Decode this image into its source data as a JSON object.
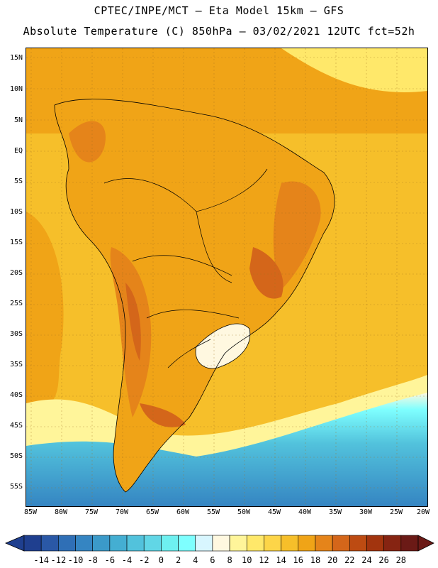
{
  "title": {
    "line1": "CPTEC/INPE/MCT –  Eta Model 15km – GFS",
    "line2": "Absolute Temperature (C) 850hPa – 03/02/2021 12UTC fct=52h"
  },
  "map": {
    "lat_ticks": [
      "15N",
      "10N",
      "5N",
      "EQ",
      "5S",
      "10S",
      "15S",
      "20S",
      "25S",
      "30S",
      "35S",
      "40S",
      "45S",
      "50S",
      "55S"
    ],
    "lon_ticks": [
      "85W",
      "80W",
      "75W",
      "70W",
      "65W",
      "60W",
      "55W",
      "50W",
      "45W",
      "40W",
      "35W",
      "30W",
      "25W",
      "20W"
    ]
  },
  "colorbar": {
    "labels": [
      "-14",
      "-12",
      "-10",
      "-8",
      "-6",
      "-4",
      "-2",
      "0",
      "2",
      "4",
      "6",
      "8",
      "10",
      "12",
      "14",
      "16",
      "18",
      "20",
      "22",
      "24",
      "26",
      "28"
    ],
    "colors": [
      "#1f3f8f",
      "#2a58a6",
      "#2f6fb6",
      "#3585c2",
      "#3b9ac9",
      "#44aed2",
      "#52c2dc",
      "#61d6e6",
      "#6ef0f0",
      "#7effff",
      "#d8f6ff",
      "#fff8e0",
      "#fff59a",
      "#ffe86a",
      "#fdd548",
      "#f6bf2a",
      "#f0a417",
      "#e5841a",
      "#d4661a",
      "#bd4b12",
      "#a2340e",
      "#862412",
      "#6b1a16"
    ]
  },
  "field_colors": {
    "ocean_warm": "#f0a417",
    "ocean_mid": "#f6bf2a",
    "land_hot": "#e5841a",
    "land_hotter": "#d4661a",
    "cold_south": "#52c2dc",
    "deep_cold": "#3585c2"
  }
}
